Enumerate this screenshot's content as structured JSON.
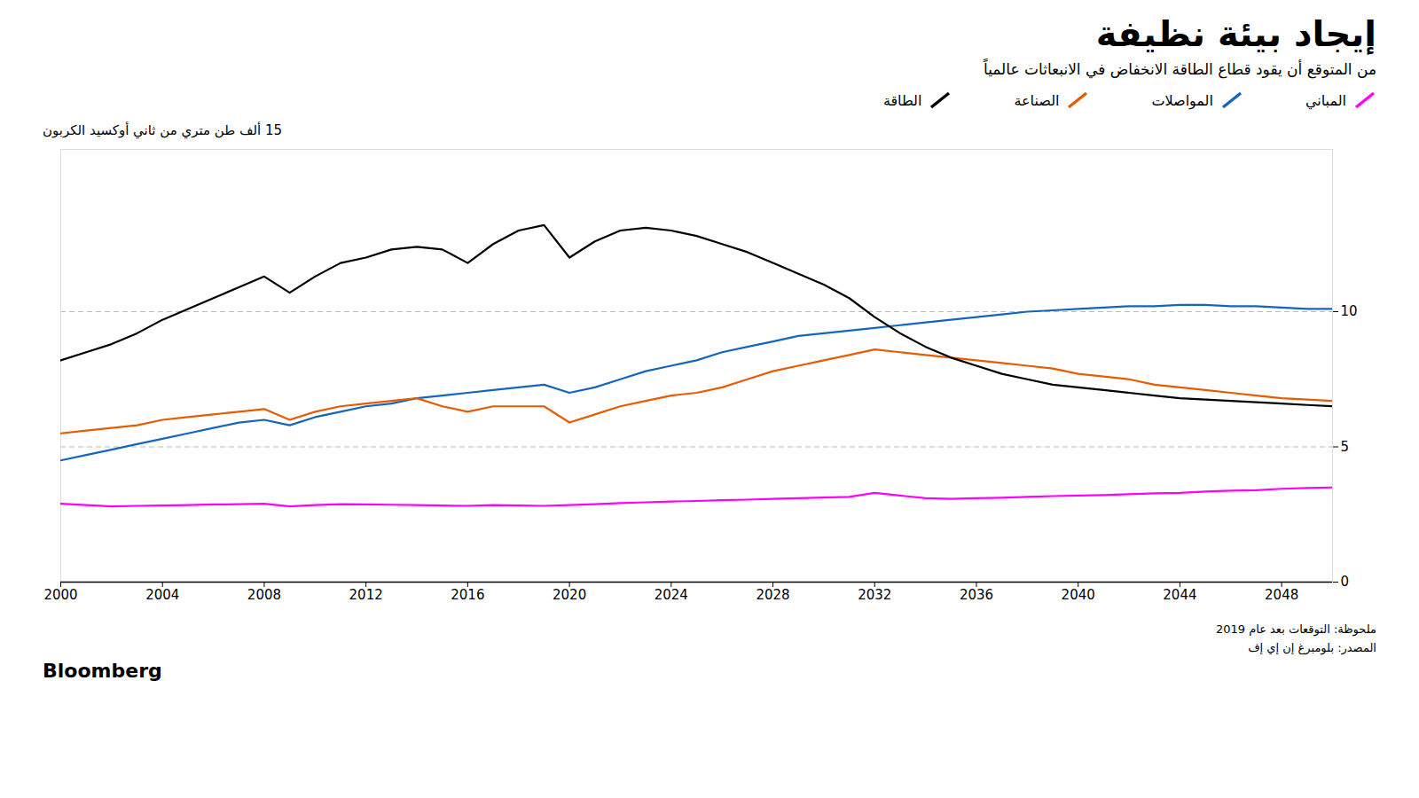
{
  "chart_data": {
    "type": "line",
    "title": "إيجاد بيئة نظيفة",
    "subtitle": "من المتوقع أن يقود قطاع الطاقة الانخفاض في الانبعاثات عالمياً",
    "ylabel": "15 ألف طن متري من ثاني أوكسيد الكربون",
    "annotations": [
      "ملحوظة: التوقعات بعد عام 2019",
      "المصدر: بلومبرغ إن إي إف",
      "Bloomberg"
    ],
    "legend": "top",
    "grid": true,
    "xlim": [
      2000,
      2050
    ],
    "xticks": [
      2000,
      2004,
      2008,
      2012,
      2016,
      2020,
      2024,
      2028,
      2032,
      2036,
      2040,
      2044,
      2048
    ],
    "ylim": [
      0,
      16
    ],
    "yticks": [
      0,
      5,
      10
    ],
    "x": [
      2000,
      2001,
      2002,
      2003,
      2004,
      2005,
      2006,
      2007,
      2008,
      2009,
      2010,
      2011,
      2012,
      2013,
      2014,
      2015,
      2016,
      2017,
      2018,
      2019,
      2020,
      2021,
      2022,
      2023,
      2024,
      2025,
      2026,
      2027,
      2028,
      2029,
      2030,
      2031,
      2032,
      2033,
      2034,
      2035,
      2036,
      2037,
      2038,
      2039,
      2040,
      2041,
      2042,
      2043,
      2044,
      2045,
      2046,
      2047,
      2048,
      2049,
      2050
    ],
    "series": [
      {
        "name": "المباني",
        "color": "#FF00FF",
        "values": [
          2.9,
          2.85,
          2.8,
          2.82,
          2.83,
          2.85,
          2.87,
          2.88,
          2.9,
          2.8,
          2.85,
          2.88,
          2.87,
          2.86,
          2.85,
          2.83,
          2.82,
          2.85,
          2.83,
          2.82,
          2.85,
          2.88,
          2.92,
          2.95,
          2.98,
          3.0,
          3.03,
          3.05,
          3.08,
          3.1,
          3.13,
          3.15,
          3.3,
          3.2,
          3.1,
          3.08,
          3.1,
          3.12,
          3.15,
          3.18,
          3.2,
          3.22,
          3.25,
          3.28,
          3.3,
          3.35,
          3.38,
          3.4,
          3.45,
          3.48,
          3.5
        ]
      },
      {
        "name": "المواصلات",
        "color": "#1565C0",
        "values": [
          4.5,
          4.7,
          4.9,
          5.1,
          5.3,
          5.5,
          5.7,
          5.9,
          6.0,
          5.8,
          6.1,
          6.3,
          6.5,
          6.6,
          6.8,
          6.9,
          7.0,
          7.1,
          7.2,
          7.3,
          7.0,
          7.2,
          7.5,
          7.8,
          8.0,
          8.2,
          8.5,
          8.7,
          8.9,
          9.1,
          9.2,
          9.3,
          9.4,
          9.5,
          9.6,
          9.7,
          9.8,
          9.9,
          10.0,
          10.05,
          10.1,
          10.15,
          10.2,
          10.2,
          10.25,
          10.25,
          10.2,
          10.2,
          10.15,
          10.1,
          10.1
        ]
      },
      {
        "name": "الصناعة",
        "color": "#E65C00",
        "values": [
          5.5,
          5.6,
          5.7,
          5.8,
          6.0,
          6.1,
          6.2,
          6.3,
          6.4,
          6.0,
          6.3,
          6.5,
          6.6,
          6.7,
          6.8,
          6.5,
          6.3,
          6.5,
          6.5,
          6.5,
          5.9,
          6.2,
          6.5,
          6.7,
          6.9,
          7.0,
          7.2,
          7.5,
          7.8,
          8.0,
          8.2,
          8.4,
          8.6,
          8.5,
          8.4,
          8.3,
          8.2,
          8.1,
          8.0,
          7.9,
          7.7,
          7.6,
          7.5,
          7.3,
          7.2,
          7.1,
          7.0,
          6.9,
          6.8,
          6.75,
          6.7
        ]
      },
      {
        "name": "الطاقة",
        "color": "#000000",
        "values": [
          8.2,
          8.5,
          8.8,
          9.2,
          9.7,
          10.1,
          10.5,
          10.9,
          11.3,
          10.7,
          11.3,
          11.8,
          12.0,
          12.3,
          12.4,
          12.3,
          11.8,
          12.5,
          13.0,
          13.2,
          12.0,
          12.6,
          13.0,
          13.1,
          13.0,
          12.8,
          12.5,
          12.2,
          11.8,
          11.4,
          11.0,
          10.5,
          9.8,
          9.2,
          8.7,
          8.3,
          8.0,
          7.7,
          7.5,
          7.3,
          7.2,
          7.1,
          7.0,
          6.9,
          6.8,
          6.75,
          6.7,
          6.65,
          6.6,
          6.55,
          6.5
        ]
      }
    ]
  }
}
